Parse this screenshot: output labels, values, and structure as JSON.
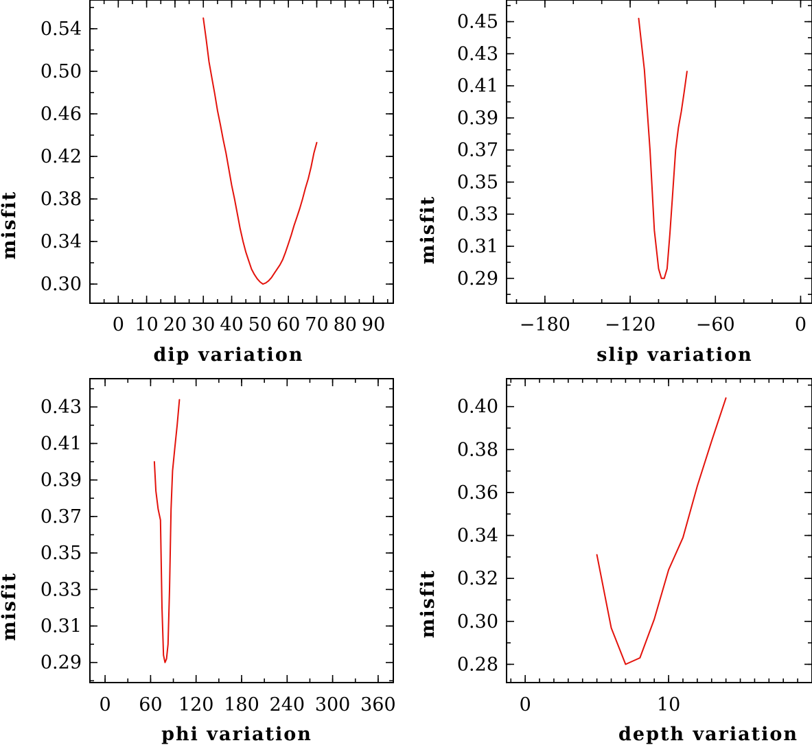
{
  "colors": {
    "series": "#e3120b",
    "axis": "#000000",
    "background": "#ffffff"
  },
  "chart_data": [
    {
      "type": "line",
      "xlabel": "dip     variation",
      "ylabel": "misfit",
      "xlim": [
        -10,
        97
      ],
      "ylim": [
        0.282,
        0.567
      ],
      "xticks": [
        0,
        10,
        20,
        30,
        40,
        50,
        60,
        70,
        80,
        90
      ],
      "xminor": 5,
      "yticks": [
        0.3,
        0.34,
        0.38,
        0.42,
        0.46,
        0.5,
        0.54
      ],
      "yminor": 0.02,
      "ydecimals": 2,
      "grid": false,
      "x": [
        30,
        31,
        32,
        33,
        34,
        35,
        36,
        37,
        38,
        39,
        40,
        41,
        42,
        43,
        44,
        45,
        46,
        47,
        48,
        49,
        50,
        51,
        52,
        53,
        54,
        55,
        56,
        57,
        58,
        59,
        60,
        61,
        62,
        63,
        64,
        65,
        66,
        67,
        68,
        69,
        70
      ],
      "y": [
        0.55,
        0.53,
        0.509,
        0.494,
        0.479,
        0.463,
        0.45,
        0.436,
        0.423,
        0.408,
        0.393,
        0.38,
        0.366,
        0.352,
        0.34,
        0.33,
        0.322,
        0.314,
        0.309,
        0.305,
        0.302,
        0.3,
        0.301,
        0.303,
        0.306,
        0.31,
        0.314,
        0.318,
        0.323,
        0.33,
        0.338,
        0.346,
        0.355,
        0.363,
        0.371,
        0.38,
        0.39,
        0.399,
        0.41,
        0.423,
        0.433
      ]
    },
    {
      "type": "line",
      "xlabel": "slip   variation",
      "ylabel": "misfit",
      "xlim": [
        -207,
        8
      ],
      "ylim": [
        0.2745,
        0.4635
      ],
      "xticks": [
        -180,
        -120,
        -60,
        0
      ],
      "xticklabels": [
        "−180",
        "−120",
        "−60",
        "0"
      ],
      "xminor": 20,
      "yticks": [
        0.29,
        0.31,
        0.33,
        0.35,
        0.37,
        0.39,
        0.41,
        0.43,
        0.45
      ],
      "yminor": 0.01,
      "ydecimals": 2,
      "grid": false,
      "x": [
        -114,
        -110,
        -106,
        -103,
        -100,
        -98,
        -96,
        -94,
        -92,
        -90,
        -88,
        -86,
        -84,
        -82,
        -80
      ],
      "y": [
        0.452,
        0.42,
        0.37,
        0.32,
        0.296,
        0.29,
        0.29,
        0.296,
        0.318,
        0.344,
        0.37,
        0.384,
        0.394,
        0.406,
        0.419
      ]
    },
    {
      "type": "line",
      "xlabel": "phi     variation",
      "ylabel": "misfit",
      "xlim": [
        -20,
        380
      ],
      "ylim": [
        0.279,
        0.4455
      ],
      "xticks": [
        0,
        60,
        120,
        180,
        240,
        300,
        360
      ],
      "xminor": 30,
      "yticks": [
        0.29,
        0.31,
        0.33,
        0.35,
        0.37,
        0.39,
        0.41,
        0.43
      ],
      "yminor": 0.01,
      "ydecimals": 2,
      "grid": false,
      "x": [
        65,
        67,
        70,
        73,
        75,
        77,
        79,
        81,
        83,
        85,
        87,
        89,
        92,
        95,
        98
      ],
      "y": [
        0.4,
        0.384,
        0.374,
        0.368,
        0.32,
        0.294,
        0.29,
        0.292,
        0.3,
        0.33,
        0.374,
        0.395,
        0.408,
        0.42,
        0.434
      ]
    },
    {
      "type": "line",
      "xlabel": "depth  variation",
      "ylabel": "misfit",
      "xlim": [
        -1.3,
        20
      ],
      "ylim": [
        0.2715,
        0.413
      ],
      "xticks": [
        0,
        10
      ],
      "xminor": 1,
      "yticks": [
        0.28,
        0.3,
        0.32,
        0.34,
        0.36,
        0.38,
        0.4
      ],
      "yminor": 0.01,
      "ydecimals": 2,
      "grid": false,
      "x": [
        5,
        6,
        7,
        8,
        9,
        10,
        11,
        12,
        13,
        14
      ],
      "y": [
        0.331,
        0.297,
        0.28,
        0.283,
        0.301,
        0.324,
        0.339,
        0.363,
        0.384,
        0.404
      ]
    }
  ]
}
